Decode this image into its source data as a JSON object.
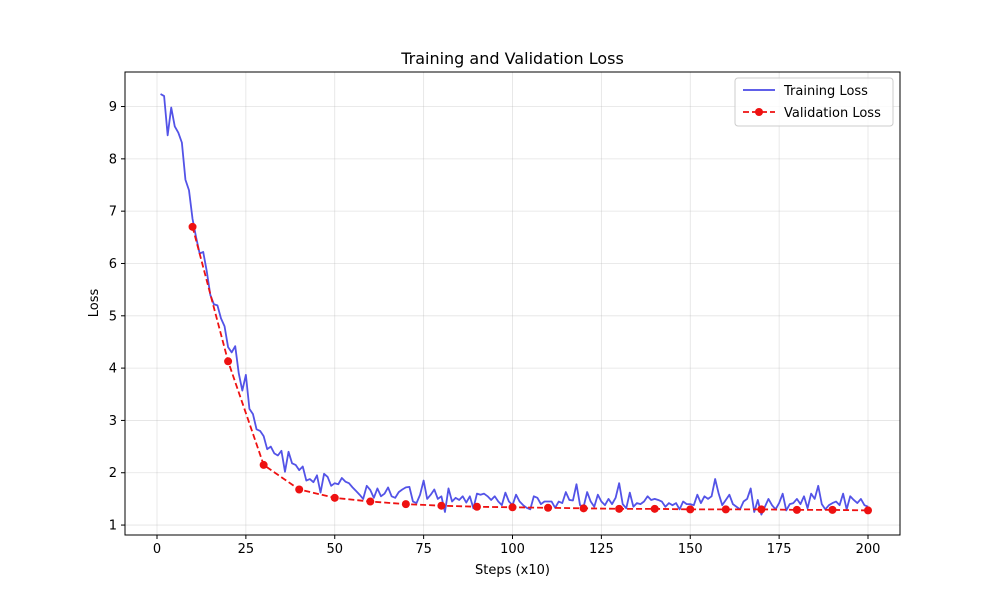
{
  "chart_data": {
    "type": "line",
    "title": "Training and Validation Loss",
    "xlabel": "Steps (x10)",
    "ylabel": "Loss",
    "xlim": [
      -9,
      209
    ],
    "ylim": [
      0.81,
      9.66
    ],
    "xticks": [
      0,
      25,
      50,
      75,
      100,
      125,
      150,
      175,
      200
    ],
    "yticks": [
      1,
      2,
      3,
      4,
      5,
      6,
      7,
      8,
      9
    ],
    "grid": true,
    "legend_position": "top-right",
    "colors": {
      "training": "#4a4ae6",
      "validation": "#ee1111"
    },
    "series": [
      {
        "name": "Training Loss",
        "style": "solid",
        "x_start": 1,
        "x_step": 1,
        "values": [
          9.24,
          9.2,
          8.45,
          8.98,
          8.62,
          8.5,
          8.31,
          7.6,
          7.4,
          6.85,
          6.5,
          6.19,
          6.22,
          5.85,
          5.4,
          5.22,
          5.2,
          4.95,
          4.8,
          4.4,
          4.3,
          4.42,
          3.9,
          3.57,
          3.87,
          3.22,
          3.12,
          2.83,
          2.8,
          2.7,
          2.45,
          2.5,
          2.37,
          2.33,
          2.42,
          2.02,
          2.4,
          2.18,
          2.15,
          2.05,
          2.12,
          1.85,
          1.88,
          1.82,
          1.95,
          1.62,
          1.98,
          1.92,
          1.75,
          1.8,
          1.78,
          1.9,
          1.83,
          1.8,
          1.72,
          1.65,
          1.58,
          1.5,
          1.75,
          1.67,
          1.52,
          1.7,
          1.55,
          1.6,
          1.72,
          1.55,
          1.52,
          1.63,
          1.68,
          1.72,
          1.73,
          1.45,
          1.42,
          1.58,
          1.85,
          1.5,
          1.58,
          1.68,
          1.5,
          1.55,
          1.25,
          1.7,
          1.45,
          1.52,
          1.48,
          1.55,
          1.43,
          1.55,
          1.32,
          1.6,
          1.58,
          1.6,
          1.55,
          1.48,
          1.55,
          1.45,
          1.38,
          1.62,
          1.45,
          1.38,
          1.58,
          1.45,
          1.38,
          1.33,
          1.3,
          1.55,
          1.52,
          1.4,
          1.45,
          1.45,
          1.45,
          1.33,
          1.45,
          1.42,
          1.63,
          1.48,
          1.47,
          1.78,
          1.38,
          1.35,
          1.63,
          1.45,
          1.35,
          1.58,
          1.45,
          1.38,
          1.5,
          1.4,
          1.52,
          1.8,
          1.4,
          1.32,
          1.62,
          1.35,
          1.42,
          1.4,
          1.45,
          1.55,
          1.48,
          1.5,
          1.48,
          1.45,
          1.35,
          1.42,
          1.38,
          1.42,
          1.3,
          1.45,
          1.4,
          1.4,
          1.38,
          1.58,
          1.42,
          1.55,
          1.5,
          1.55,
          1.88,
          1.6,
          1.38,
          1.48,
          1.58,
          1.4,
          1.35,
          1.3,
          1.45,
          1.5,
          1.7,
          1.25,
          1.48,
          1.2,
          1.35,
          1.5,
          1.38,
          1.3,
          1.42,
          1.6,
          1.28,
          1.4,
          1.42,
          1.5,
          1.4,
          1.55,
          1.32,
          1.6,
          1.5,
          1.75,
          1.4,
          1.3,
          1.38,
          1.42,
          1.45,
          1.38,
          1.6,
          1.3,
          1.55,
          1.48,
          1.42,
          1.5,
          1.38,
          1.35
        ]
      },
      {
        "name": "Validation Loss",
        "style": "dashed",
        "marker": "circle",
        "x": [
          10,
          20,
          30,
          40,
          50,
          60,
          70,
          80,
          90,
          100,
          110,
          120,
          130,
          140,
          150,
          160,
          170,
          180,
          190,
          200
        ],
        "values": [
          6.7,
          4.13,
          2.15,
          1.68,
          1.52,
          1.45,
          1.4,
          1.37,
          1.35,
          1.34,
          1.33,
          1.32,
          1.31,
          1.31,
          1.3,
          1.3,
          1.3,
          1.29,
          1.29,
          1.28
        ]
      }
    ]
  }
}
